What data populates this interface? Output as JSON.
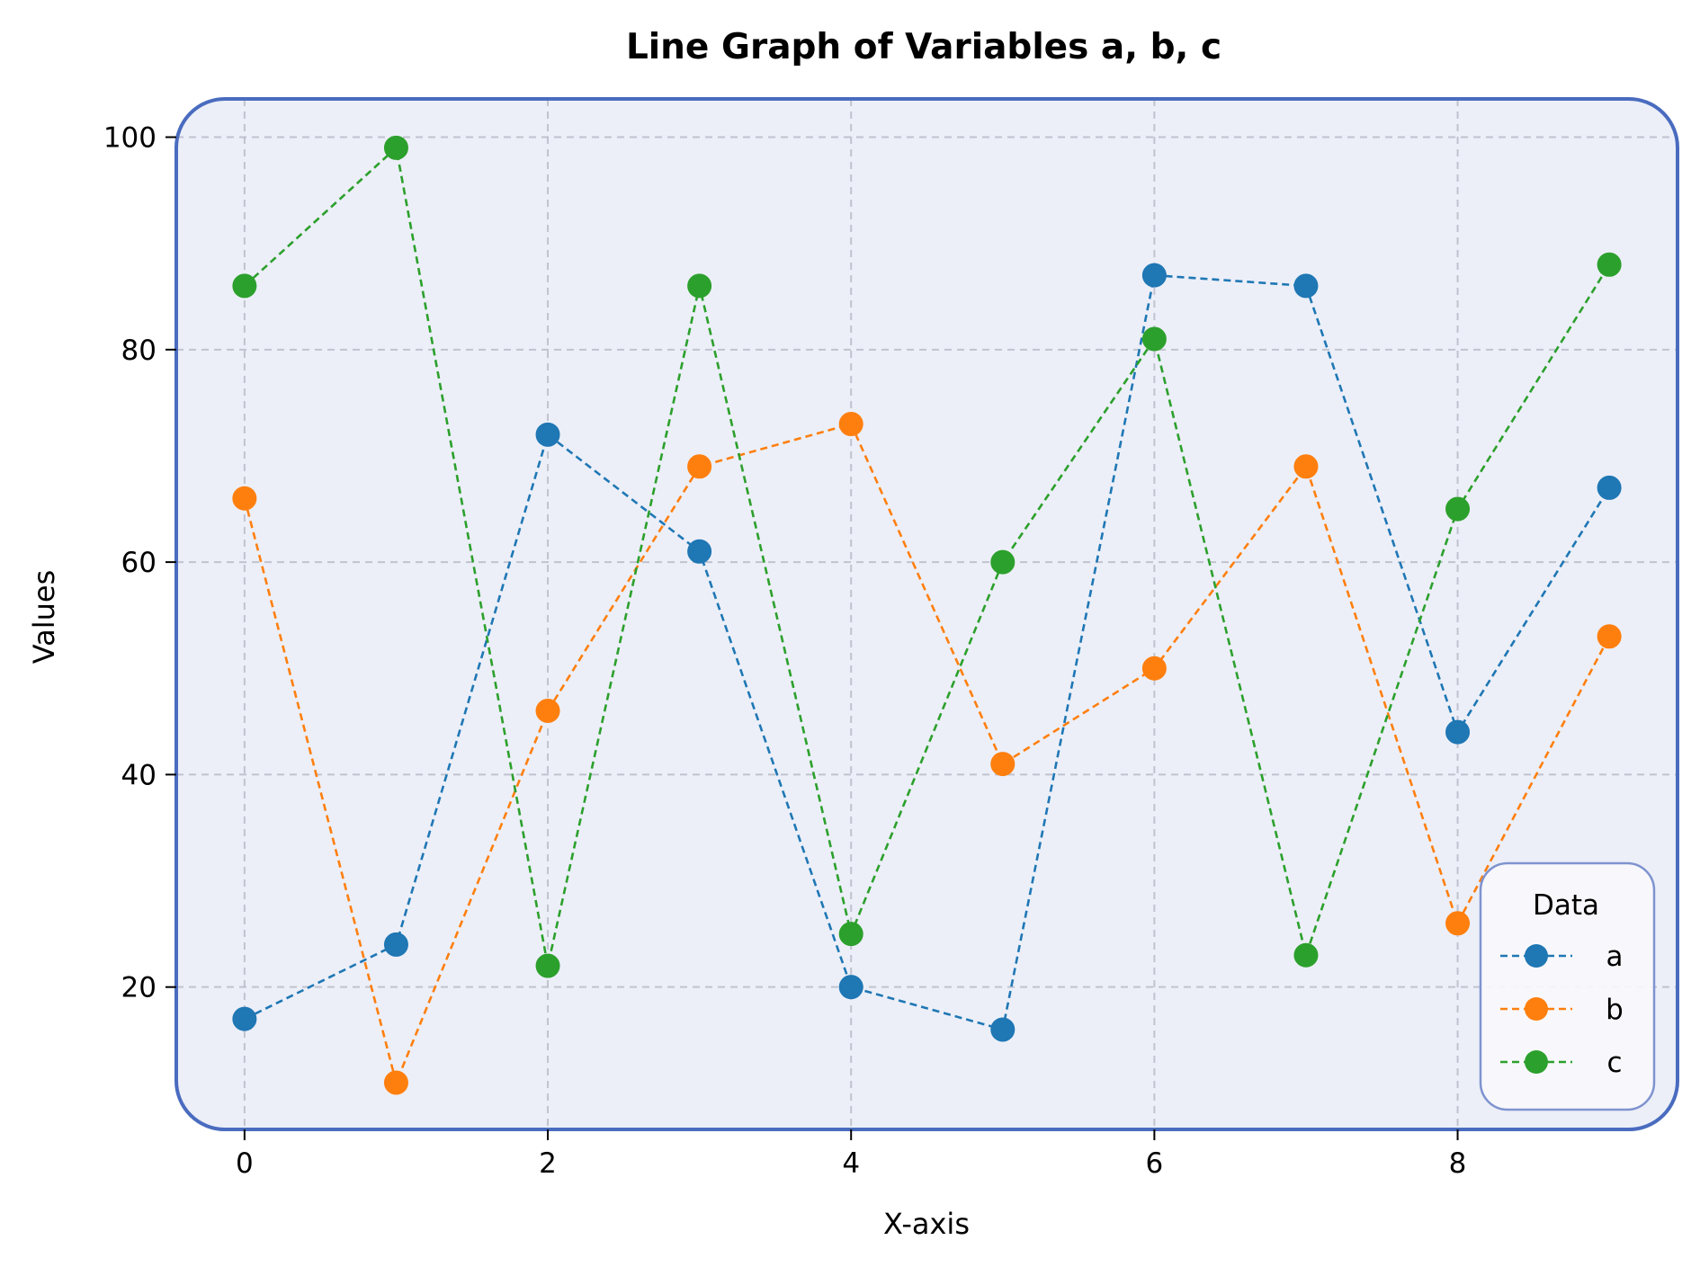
{
  "chart_data": {
    "type": "line",
    "title": "Line Graph of Variables a, b, c",
    "xlabel": "X-axis",
    "ylabel": "Values",
    "x": [
      0,
      1,
      2,
      3,
      4,
      5,
      6,
      7,
      8,
      9
    ],
    "xlim": [
      -0.45,
      9.45
    ],
    "ylim": [
      6.6,
      103.6
    ],
    "x_ticks": [
      0,
      2,
      4,
      6,
      8
    ],
    "y_ticks": [
      20,
      40,
      60,
      80,
      100
    ],
    "x_tick_labels": [
      "0",
      "2",
      "4",
      "6",
      "8"
    ],
    "y_tick_labels": [
      "20",
      "40",
      "60",
      "80",
      "100"
    ],
    "grid": true,
    "line_style": "dashed",
    "marker": "circle",
    "legend": {
      "title": "Data",
      "placement": "lower-right"
    },
    "series": [
      {
        "name": "a",
        "color": "#1f77b4",
        "values": [
          17,
          24,
          72,
          61,
          20,
          16,
          87,
          86,
          44,
          67
        ]
      },
      {
        "name": "b",
        "color": "#ff7f0e",
        "values": [
          66,
          11,
          46,
          69,
          73,
          41,
          50,
          69,
          26,
          53
        ]
      },
      {
        "name": "c",
        "color": "#2ca02c",
        "values": [
          86,
          99,
          22,
          86,
          25,
          60,
          81,
          23,
          65,
          88
        ]
      }
    ],
    "colors": {
      "plot_background": "#eceff8",
      "plot_border": "#4a6cbf",
      "legend_border": "#7f93cf"
    }
  }
}
